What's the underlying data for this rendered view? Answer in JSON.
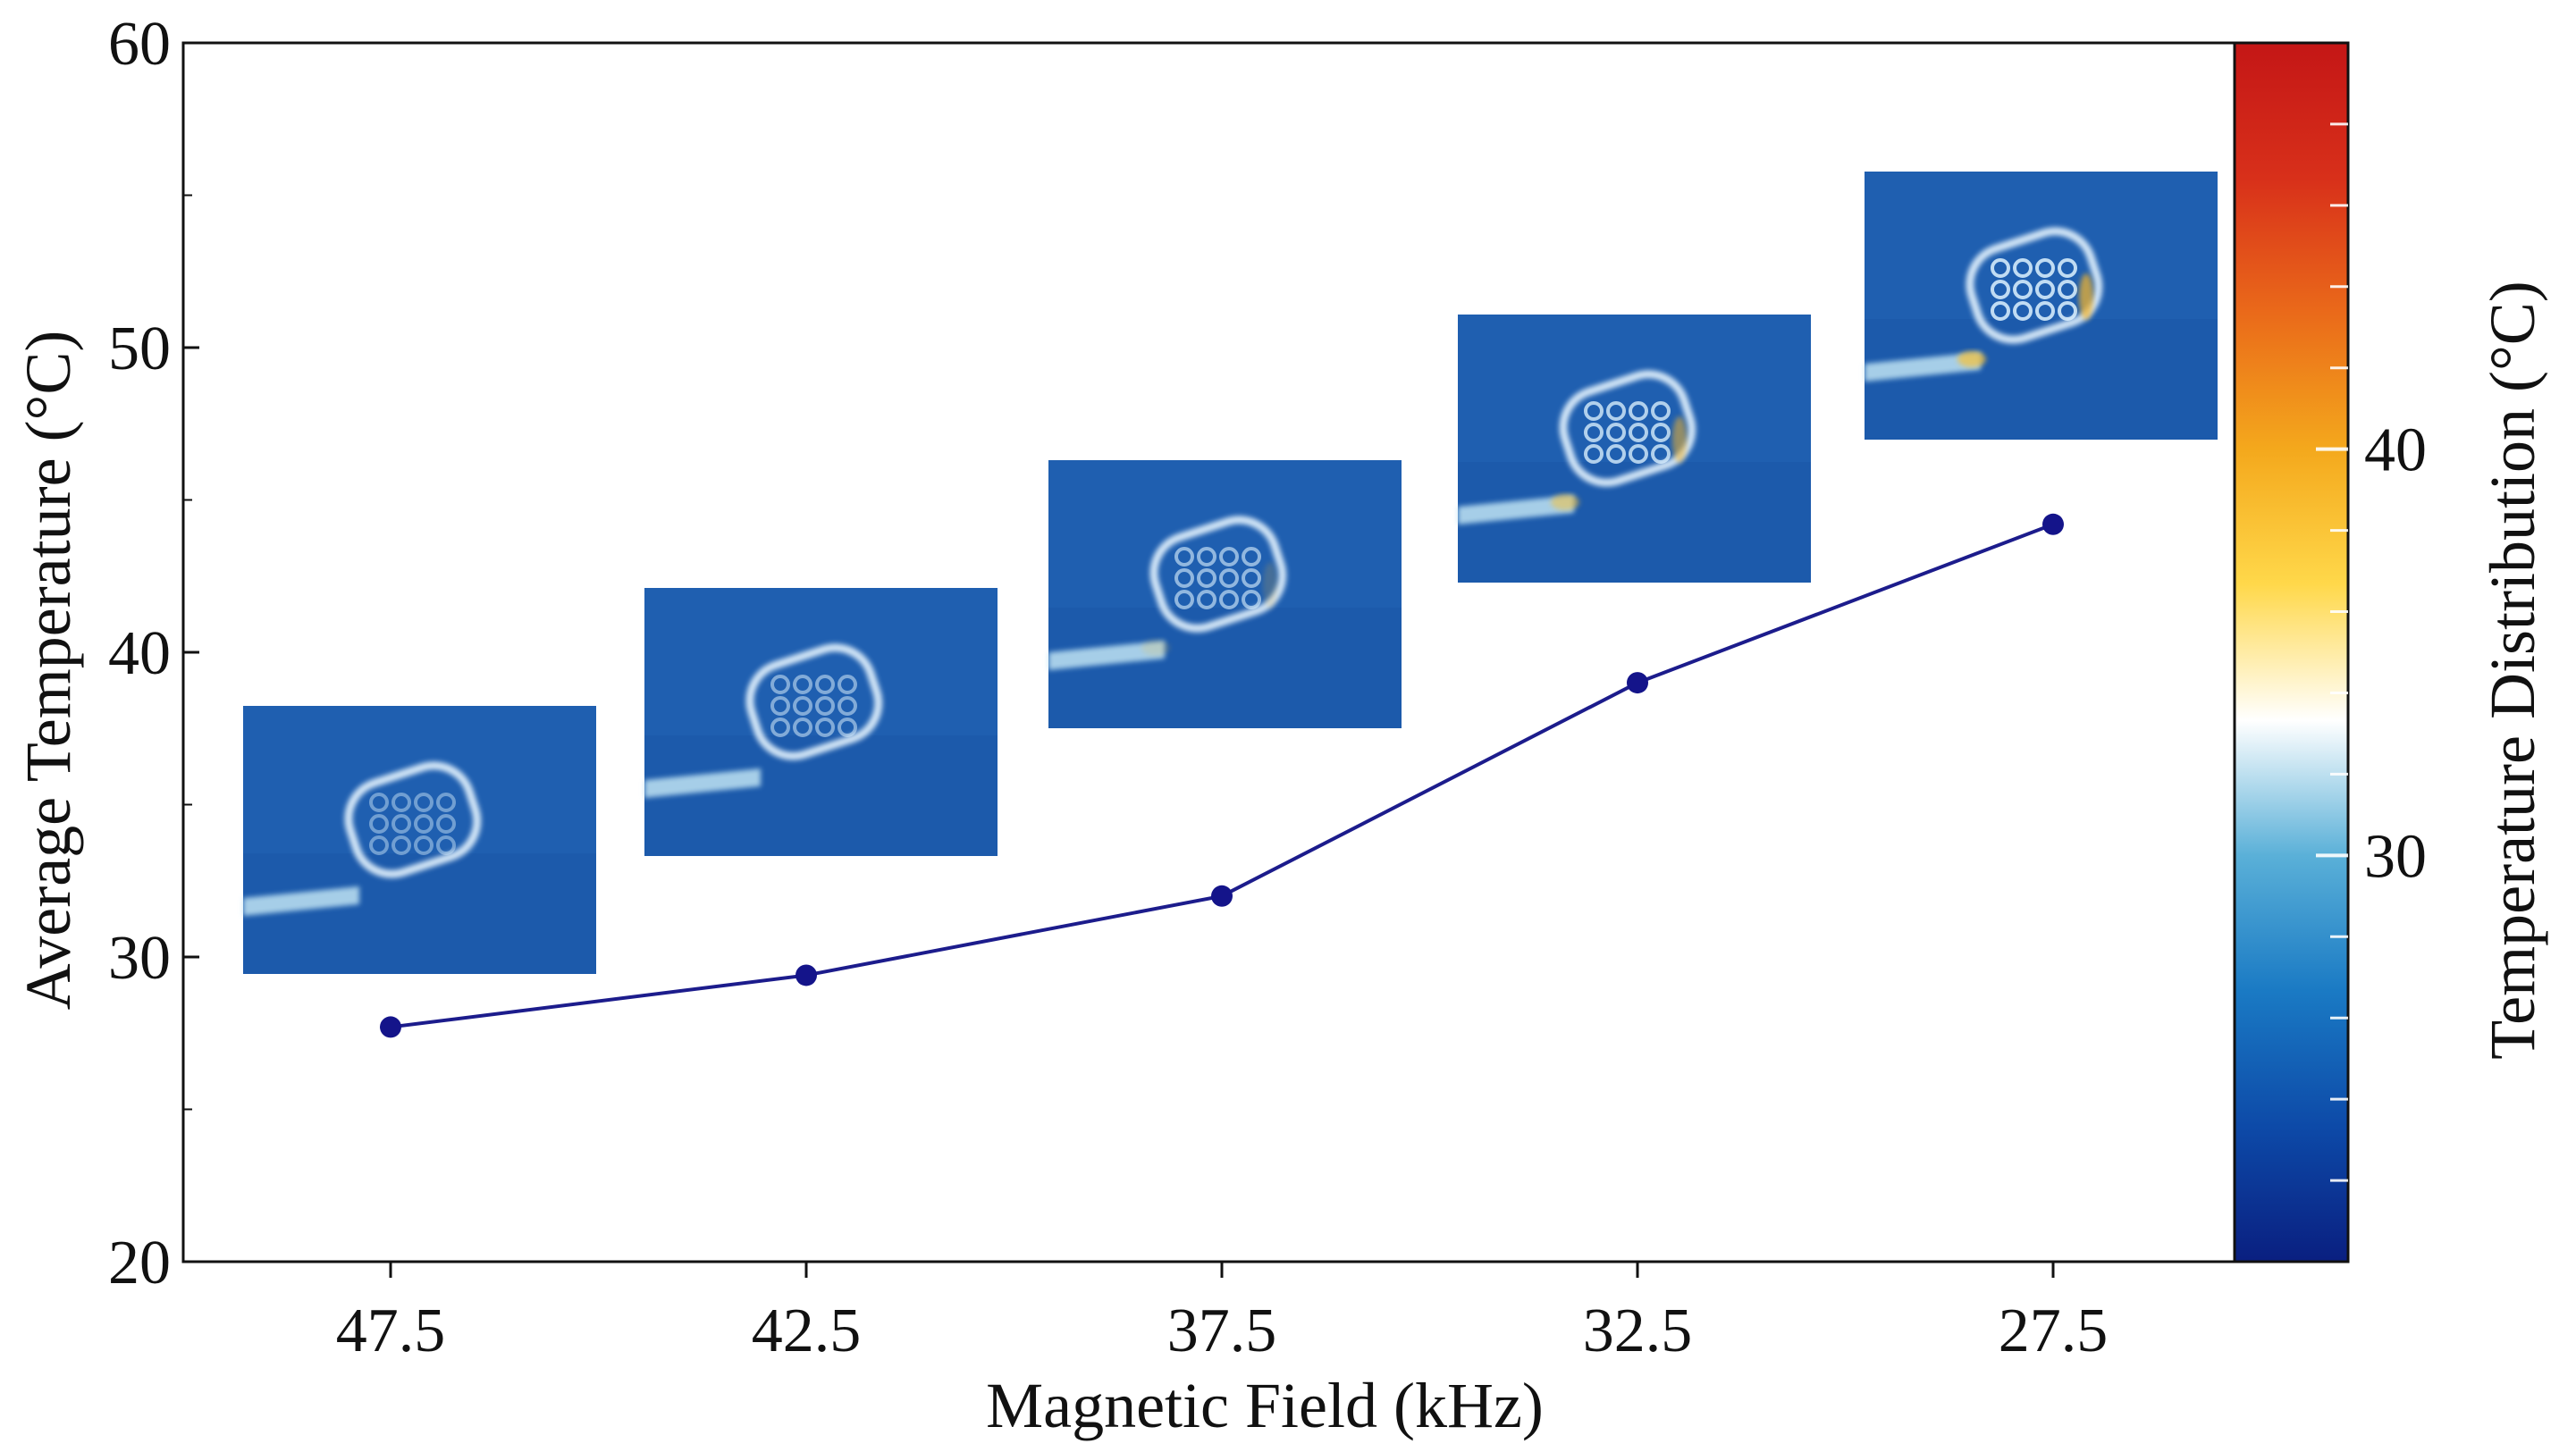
{
  "chart_data": {
    "type": "line",
    "title": "",
    "xlabel": "Magnetic Field (kHz)",
    "ylabel": "Average Temperature (°C)",
    "categories": [
      "47.5",
      "42.5",
      "37.5",
      "32.5",
      "27.5"
    ],
    "series": [
      {
        "name": "Average Temperature",
        "values": [
          27.7,
          29.4,
          32.0,
          39.0,
          44.2
        ],
        "color": "#1c1c8c"
      }
    ],
    "ylim": [
      20,
      60
    ],
    "yticks": [
      20,
      30,
      40,
      50,
      60
    ],
    "ytick_labels": [
      "20",
      "30",
      "40",
      "50",
      "60"
    ],
    "grid": false,
    "legend": "none",
    "insets": [
      {
        "category": "47.5",
        "type": "thermal-image",
        "intensity": 0.15
      },
      {
        "category": "42.5",
        "type": "thermal-image",
        "intensity": 0.3
      },
      {
        "category": "37.5",
        "type": "thermal-image",
        "intensity": 0.45
      },
      {
        "category": "32.5",
        "type": "thermal-image",
        "intensity": 0.75
      },
      {
        "category": "27.5",
        "type": "thermal-image",
        "intensity": 0.9
      }
    ],
    "colorbar": {
      "label": "Temperature Distribution (°C)",
      "range": [
        20,
        50
      ],
      "ticks": [
        30,
        40
      ],
      "tick_labels": [
        "30",
        "40"
      ],
      "colors": [
        "#0a1f80",
        "#0d4aa8",
        "#1a7ac4",
        "#5ab0d8",
        "#ffffff",
        "#ffd84a",
        "#f4a81c",
        "#ea6a1a",
        "#d8301a",
        "#c41616"
      ]
    },
    "colors": {
      "axis": "#111111",
      "line": "#1c1c8c",
      "marker": "#14148a",
      "image_bg": "#1f5fb0"
    }
  }
}
